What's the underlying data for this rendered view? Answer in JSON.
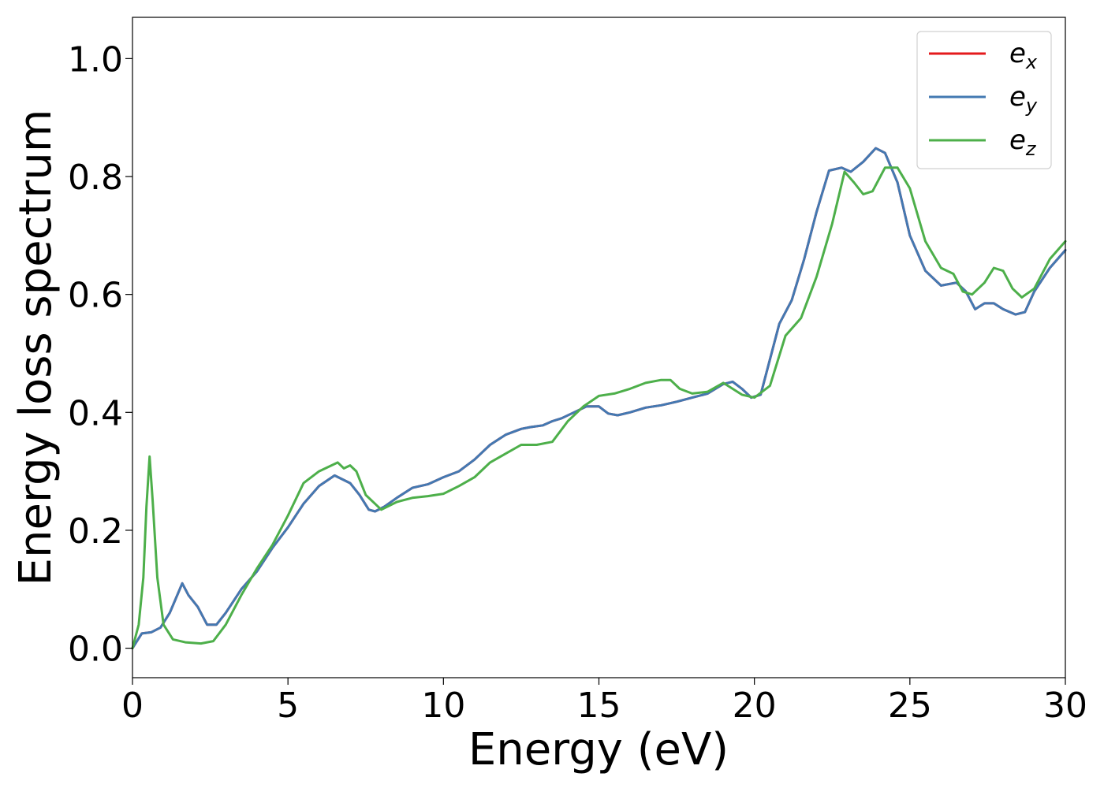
{
  "chart_data": {
    "type": "line",
    "xlabel": "Energy (eV)",
    "ylabel": "Energy loss spectrum",
    "xlim": [
      0,
      30
    ],
    "ylim": [
      -0.05,
      1.07
    ],
    "xticks": [
      0,
      5,
      10,
      15,
      20,
      25,
      30
    ],
    "xtick_labels": [
      "0",
      "5",
      "10",
      "15",
      "20",
      "25",
      "30"
    ],
    "yticks": [
      0.0,
      0.2,
      0.4,
      0.6,
      0.8,
      1.0
    ],
    "ytick_labels": [
      "0.0",
      "0.2",
      "0.4",
      "0.6",
      "0.8",
      "1.0"
    ],
    "grid": false,
    "legend_position": "top-right",
    "series": [
      {
        "name": "e_x",
        "label_base": "e",
        "label_sub": "x",
        "color": "#e41a1c",
        "x": [
          0,
          0.3,
          0.6,
          0.9,
          1.2,
          1.6,
          1.8,
          2.1,
          2.4,
          2.7,
          3.0,
          3.5,
          4.0,
          4.5,
          5.0,
          5.5,
          6.0,
          6.5,
          7.0,
          7.3,
          7.6,
          7.8,
          8.1,
          8.5,
          9.0,
          9.5,
          10.0,
          10.5,
          11.0,
          11.5,
          12.0,
          12.5,
          12.8,
          13.2,
          13.5,
          13.8,
          14.2,
          14.6,
          15.0,
          15.3,
          15.6,
          16.0,
          16.5,
          17.0,
          17.5,
          18.0,
          18.5,
          19.0,
          19.3,
          19.6,
          19.9,
          20.2,
          20.5,
          20.8,
          21.2,
          21.6,
          22.0,
          22.4,
          22.8,
          23.1,
          23.5,
          23.9,
          24.2,
          24.6,
          25.0,
          25.5,
          26.0,
          26.5,
          26.8,
          27.1,
          27.4,
          27.7,
          28.0,
          28.4,
          28.7,
          29.0,
          29.5,
          30.0
        ],
        "y": [
          0.0,
          0.025,
          0.027,
          0.035,
          0.06,
          0.11,
          0.09,
          0.07,
          0.04,
          0.04,
          0.06,
          0.1,
          0.13,
          0.17,
          0.205,
          0.245,
          0.275,
          0.293,
          0.28,
          0.26,
          0.235,
          0.232,
          0.24,
          0.255,
          0.272,
          0.278,
          0.29,
          0.3,
          0.32,
          0.345,
          0.362,
          0.372,
          0.375,
          0.378,
          0.385,
          0.39,
          0.4,
          0.41,
          0.41,
          0.398,
          0.395,
          0.4,
          0.408,
          0.412,
          0.418,
          0.425,
          0.432,
          0.448,
          0.452,
          0.44,
          0.425,
          0.43,
          0.49,
          0.55,
          0.59,
          0.66,
          0.74,
          0.81,
          0.815,
          0.808,
          0.825,
          0.848,
          0.84,
          0.79,
          0.7,
          0.64,
          0.615,
          0.62,
          0.605,
          0.575,
          0.585,
          0.585,
          0.575,
          0.566,
          0.57,
          0.605,
          0.645,
          0.675
        ]
      },
      {
        "name": "e_y",
        "label_base": "e",
        "label_sub": "y",
        "color": "#4379b2",
        "x": [
          0,
          0.3,
          0.6,
          0.9,
          1.2,
          1.6,
          1.8,
          2.1,
          2.4,
          2.7,
          3.0,
          3.5,
          4.0,
          4.5,
          5.0,
          5.5,
          6.0,
          6.5,
          7.0,
          7.3,
          7.6,
          7.8,
          8.1,
          8.5,
          9.0,
          9.5,
          10.0,
          10.5,
          11.0,
          11.5,
          12.0,
          12.5,
          12.8,
          13.2,
          13.5,
          13.8,
          14.2,
          14.6,
          15.0,
          15.3,
          15.6,
          16.0,
          16.5,
          17.0,
          17.5,
          18.0,
          18.5,
          19.0,
          19.3,
          19.6,
          19.9,
          20.2,
          20.5,
          20.8,
          21.2,
          21.6,
          22.0,
          22.4,
          22.8,
          23.1,
          23.5,
          23.9,
          24.2,
          24.6,
          25.0,
          25.5,
          26.0,
          26.5,
          26.8,
          27.1,
          27.4,
          27.7,
          28.0,
          28.4,
          28.7,
          29.0,
          29.5,
          30.0
        ],
        "y": [
          0.0,
          0.025,
          0.027,
          0.035,
          0.06,
          0.11,
          0.09,
          0.07,
          0.04,
          0.04,
          0.06,
          0.1,
          0.13,
          0.17,
          0.205,
          0.245,
          0.275,
          0.293,
          0.28,
          0.26,
          0.235,
          0.232,
          0.24,
          0.255,
          0.272,
          0.278,
          0.29,
          0.3,
          0.32,
          0.345,
          0.362,
          0.372,
          0.375,
          0.378,
          0.385,
          0.39,
          0.4,
          0.41,
          0.41,
          0.398,
          0.395,
          0.4,
          0.408,
          0.412,
          0.418,
          0.425,
          0.432,
          0.448,
          0.452,
          0.44,
          0.425,
          0.43,
          0.49,
          0.55,
          0.59,
          0.66,
          0.74,
          0.81,
          0.815,
          0.808,
          0.825,
          0.848,
          0.84,
          0.79,
          0.7,
          0.64,
          0.615,
          0.62,
          0.605,
          0.575,
          0.585,
          0.585,
          0.575,
          0.566,
          0.57,
          0.605,
          0.645,
          0.675
        ]
      },
      {
        "name": "e_z",
        "label_base": "e",
        "label_sub": "z",
        "color": "#4daf4a",
        "x": [
          0,
          0.2,
          0.35,
          0.45,
          0.55,
          0.65,
          0.8,
          1.0,
          1.3,
          1.7,
          2.2,
          2.6,
          3.0,
          3.5,
          4.0,
          4.5,
          5.0,
          5.5,
          6.0,
          6.6,
          6.8,
          7.0,
          7.2,
          7.5,
          8.0,
          8.5,
          9.0,
          9.5,
          10.0,
          10.5,
          11.0,
          11.5,
          12.0,
          12.5,
          13.0,
          13.5,
          14.0,
          14.5,
          15.0,
          15.5,
          16.0,
          16.5,
          17.0,
          17.3,
          17.6,
          18.0,
          18.5,
          19.0,
          19.3,
          19.6,
          20.0,
          20.5,
          21.0,
          21.5,
          22.0,
          22.5,
          22.9,
          23.2,
          23.5,
          23.8,
          24.2,
          24.6,
          25.0,
          25.5,
          26.0,
          26.4,
          26.7,
          27.0,
          27.4,
          27.7,
          28.0,
          28.3,
          28.6,
          29.0,
          29.5,
          30.0
        ],
        "y": [
          0.0,
          0.04,
          0.12,
          0.24,
          0.325,
          0.25,
          0.12,
          0.04,
          0.015,
          0.01,
          0.008,
          0.012,
          0.04,
          0.09,
          0.135,
          0.175,
          0.225,
          0.28,
          0.3,
          0.315,
          0.305,
          0.31,
          0.3,
          0.26,
          0.235,
          0.248,
          0.255,
          0.258,
          0.262,
          0.275,
          0.29,
          0.315,
          0.33,
          0.345,
          0.345,
          0.35,
          0.385,
          0.41,
          0.428,
          0.432,
          0.44,
          0.45,
          0.455,
          0.455,
          0.44,
          0.432,
          0.435,
          0.45,
          0.44,
          0.43,
          0.425,
          0.445,
          0.53,
          0.56,
          0.63,
          0.72,
          0.808,
          0.79,
          0.77,
          0.775,
          0.815,
          0.815,
          0.78,
          0.69,
          0.645,
          0.635,
          0.605,
          0.6,
          0.62,
          0.645,
          0.64,
          0.61,
          0.595,
          0.61,
          0.66,
          0.69
        ]
      }
    ]
  }
}
